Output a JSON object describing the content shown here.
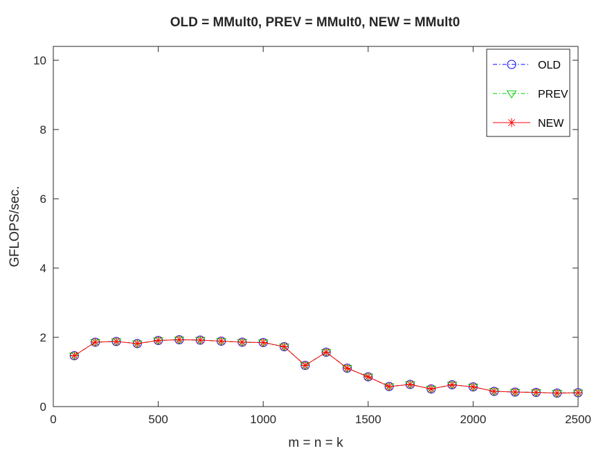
{
  "chart_data": {
    "type": "line",
    "title": "OLD = MMult0, PREV = MMult0, NEW = MMult0",
    "xlabel": "m = n = k",
    "ylabel": "GFLOPS/sec.",
    "xlim": [
      0,
      2500
    ],
    "ylim": [
      0,
      10.4
    ],
    "xticks": [
      "0",
      "500",
      "1000",
      "1500",
      "2000",
      "2500"
    ],
    "yticks": [
      "0",
      "2",
      "4",
      "6",
      "8",
      "10"
    ],
    "grid": false,
    "legend_position": "top-right",
    "x": [
      100,
      200,
      300,
      400,
      500,
      600,
      700,
      800,
      900,
      1000,
      1100,
      1200,
      1300,
      1400,
      1500,
      1600,
      1700,
      1800,
      1900,
      2000,
      2100,
      2200,
      2300,
      2400,
      2500
    ],
    "series": [
      {
        "name": "OLD",
        "color": "#0000ff",
        "line": "dash-dot",
        "marker": "circle",
        "values": [
          1.47,
          1.86,
          1.88,
          1.82,
          1.91,
          1.93,
          1.92,
          1.89,
          1.86,
          1.85,
          1.73,
          1.19,
          1.57,
          1.11,
          0.86,
          0.58,
          0.64,
          0.51,
          0.63,
          0.57,
          0.44,
          0.42,
          0.41,
          0.39,
          0.4
        ]
      },
      {
        "name": "PREV",
        "color": "#00cc00",
        "line": "dash-dot",
        "marker": "triangle-down",
        "values": [
          1.47,
          1.86,
          1.88,
          1.82,
          1.91,
          1.93,
          1.92,
          1.89,
          1.86,
          1.85,
          1.73,
          1.19,
          1.57,
          1.11,
          0.86,
          0.58,
          0.64,
          0.51,
          0.63,
          0.57,
          0.44,
          0.42,
          0.41,
          0.39,
          0.4
        ]
      },
      {
        "name": "NEW",
        "color": "#ff0000",
        "line": "solid",
        "marker": "asterisk",
        "values": [
          1.47,
          1.86,
          1.88,
          1.82,
          1.91,
          1.93,
          1.92,
          1.89,
          1.86,
          1.85,
          1.73,
          1.19,
          1.57,
          1.11,
          0.86,
          0.58,
          0.64,
          0.51,
          0.63,
          0.57,
          0.44,
          0.42,
          0.41,
          0.39,
          0.4
        ]
      }
    ]
  }
}
